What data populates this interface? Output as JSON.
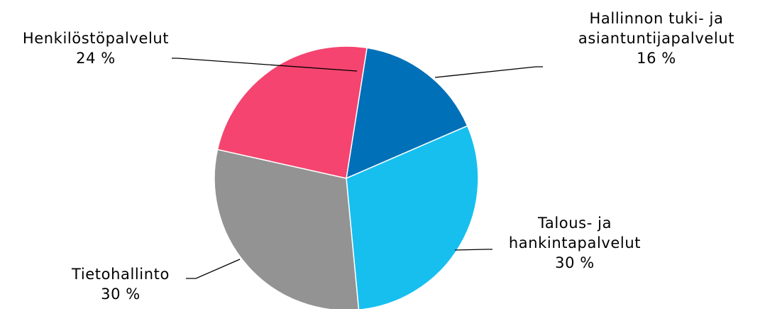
{
  "chart_data": {
    "type": "pie",
    "slices": [
      {
        "label_lines": [
          "Hallinnon tuki- ja",
          "asiantuntijapalvelut"
        ],
        "value": 16,
        "value_label": "16 %",
        "color": "#0070B8"
      },
      {
        "label_lines": [
          "Talous- ja",
          "hankintapalvelut"
        ],
        "value": 30,
        "value_label": "30 %",
        "color": "#17BFEF"
      },
      {
        "label_lines": [
          "Tietohallinto"
        ],
        "value": 30,
        "value_label": "30 %",
        "color": "#939393"
      },
      {
        "label_lines": [
          "Henkilöstöpalvelut"
        ],
        "value": 24,
        "value_label": "24 %",
        "color": "#F4446F"
      }
    ],
    "start_angle_deg": 9
  }
}
